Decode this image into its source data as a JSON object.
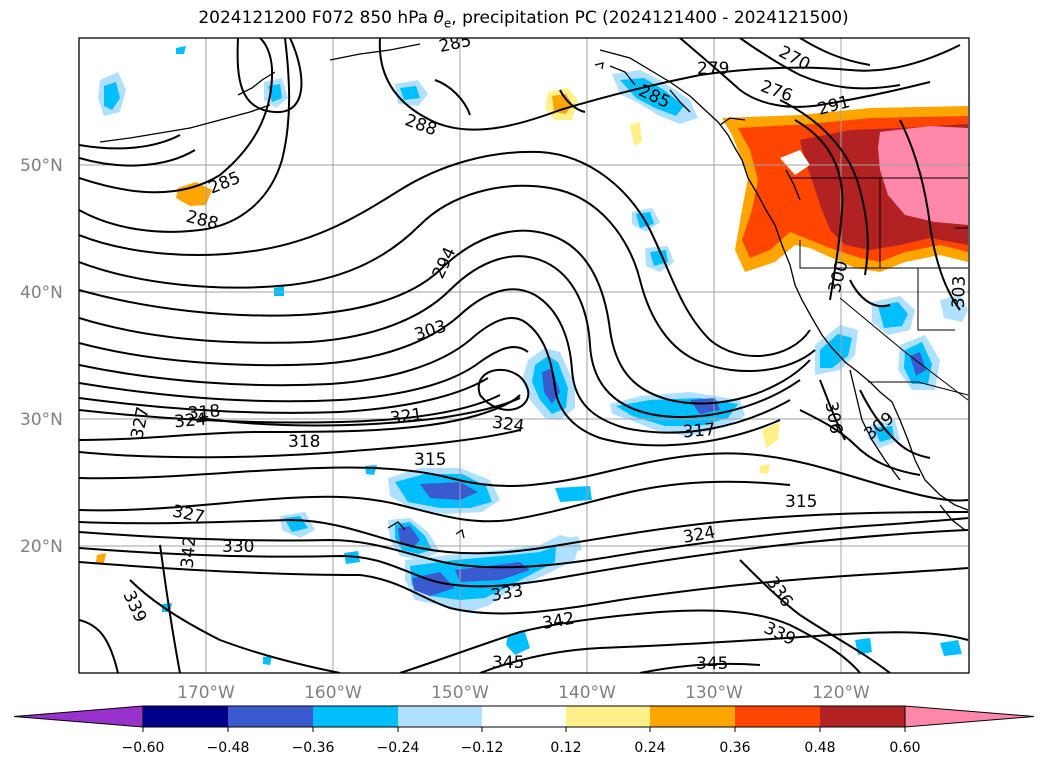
{
  "title_prefix": "2024121200 F072 850 hPa ",
  "title_symbol": "θ",
  "title_subscript": "e",
  "title_suffix": ", precipitation PC (2024121400 - 2024121500)",
  "lat_labels": [
    "50°N",
    "40°N",
    "30°N",
    "20°N"
  ],
  "lon_labels": [
    "170°W",
    "160°W",
    "150°W",
    "140°W",
    "130°W",
    "120°W"
  ],
  "colorbar": {
    "ticks": [
      "−0.60",
      "−0.48",
      "−0.36",
      "−0.24",
      "−0.12",
      "0.12",
      "0.24",
      "0.36",
      "0.48",
      "0.60"
    ],
    "colors": [
      "#9932cc",
      "#00008b",
      "#3a5bd0",
      "#00bfff",
      "#b0e0ff",
      "#ffffff",
      "#fff08a",
      "#ffa500",
      "#ff4500",
      "#b22222",
      "#ff88aa",
      "#ff88aa"
    ]
  },
  "contour_labels": [
    "285",
    "288",
    "285",
    "288",
    "294",
    "303",
    "279",
    "270",
    "276",
    "291",
    "285",
    "318",
    "324",
    "327",
    "321",
    "318",
    "324",
    "317",
    "315",
    "306",
    "309",
    "315",
    "327",
    "330",
    "342",
    "339",
    "324",
    "333",
    "336",
    "339",
    "342",
    "345",
    "345",
    "300",
    "303"
  ]
}
